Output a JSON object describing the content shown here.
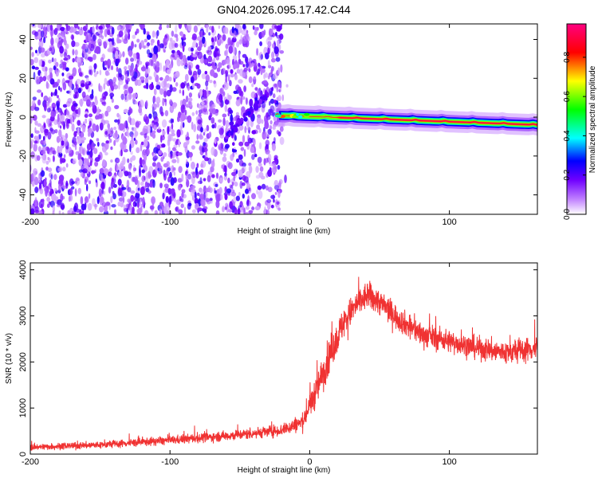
{
  "figure": {
    "title": "GN04.2026.095.17.42.C44"
  },
  "chart_data": [
    {
      "type": "heatmap",
      "xlabel": "Height of straight line (km)",
      "ylabel": "Frequency (Hz)",
      "xlim": [
        -200,
        163
      ],
      "ylim": [
        -50,
        48
      ],
      "xticks": [
        -200,
        -100,
        0,
        100
      ],
      "yticks": [
        -40,
        -20,
        0,
        20,
        40
      ],
      "colorbar": {
        "label": "Normalized spectral amplitude",
        "range": [
          0.0,
          0.97
        ],
        "ticks": [
          0.0,
          0.2,
          0.4,
          0.6,
          0.8
        ],
        "tick_labels": [
          "0.0",
          "0.2",
          "0.4",
          "0.6",
          "0.8"
        ]
      },
      "regions": [
        {
          "name": "noise",
          "x_range": [
            -200,
            -20
          ],
          "frequency_range": [
            -50,
            48
          ],
          "amplitude_range": [
            0.05,
            0.25
          ]
        },
        {
          "name": "drift-streak",
          "x_range": [
            -60,
            -30
          ],
          "frequency_range": [
            -10,
            12
          ],
          "amplitude_range": [
            0.15,
            0.25
          ]
        },
        {
          "name": "signal-line",
          "x_range": [
            -25,
            163
          ],
          "frequency_start": 1,
          "frequency_end": -4,
          "peak_amplitude": 0.95
        }
      ],
      "grid": false
    },
    {
      "type": "line",
      "xlabel": "Height of straight line (km)",
      "ylabel": "SNR (10 * v/v)",
      "xlim": [
        -200,
        163
      ],
      "ylim": [
        0,
        4150
      ],
      "xticks": [
        -200,
        -100,
        0,
        100
      ],
      "yticks": [
        0,
        1000,
        2000,
        3000,
        4000
      ],
      "color": "#f03232",
      "envelope": {
        "x": [
          -200,
          -150,
          -100,
          -50,
          -20,
          -5,
          5,
          15,
          25,
          35,
          42,
          50,
          65,
          80,
          100,
          120,
          140,
          163
        ],
        "mean": [
          150,
          200,
          300,
          420,
          520,
          700,
          1400,
          2200,
          2900,
          3300,
          3450,
          3300,
          2900,
          2600,
          2450,
          2300,
          2200,
          2300
        ],
        "spread": [
          80,
          90,
          110,
          130,
          150,
          220,
          400,
          450,
          380,
          350,
          350,
          330,
          300,
          300,
          280,
          280,
          300,
          300
        ]
      },
      "grid": false
    }
  ]
}
